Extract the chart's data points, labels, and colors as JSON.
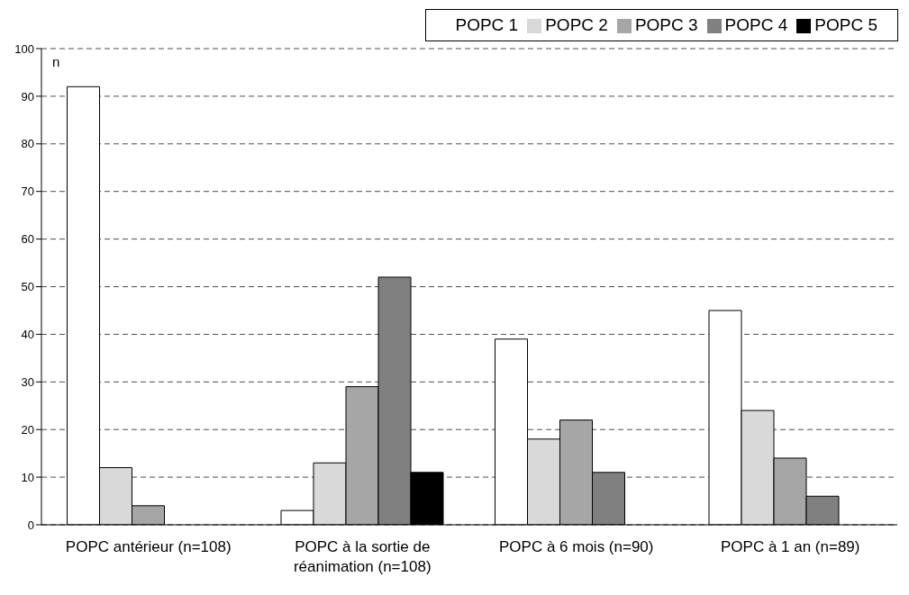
{
  "chart_data": {
    "type": "bar",
    "ylabel": "n",
    "categories": [
      "POPC antérieur (n=108)",
      "POPC à la sortie de réanimation (n=108)",
      "POPC à 6 mois (n=90)",
      "POPC à 1 an (n=89)"
    ],
    "series": [
      {
        "name": "POPC 1",
        "color": "#ffffff",
        "values": [
          92,
          3,
          39,
          45
        ]
      },
      {
        "name": "POPC 2",
        "color": "#d9d9d9",
        "values": [
          12,
          13,
          18,
          24
        ]
      },
      {
        "name": "POPC 3",
        "color": "#a6a6a6",
        "values": [
          4,
          29,
          22,
          14
        ]
      },
      {
        "name": "POPC 4",
        "color": "#808080",
        "values": [
          0,
          52,
          11,
          6
        ]
      },
      {
        "name": "POPC 5",
        "color": "#000000",
        "values": [
          0,
          11,
          0,
          0
        ]
      }
    ],
    "ylim": [
      0,
      100
    ],
    "yticks": [
      0,
      10,
      20,
      30,
      40,
      50,
      60,
      70,
      80,
      90,
      100
    ],
    "grid": "y",
    "legend": "top right"
  }
}
